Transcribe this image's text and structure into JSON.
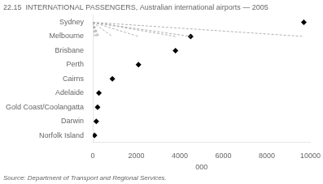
{
  "chart_data": {
    "type": "lollipop",
    "orientation": "horizontal",
    "title": "22.15  INTERNATIONAL PASSENGERS, Australian international airports — 2005",
    "source": "Source: Department of Transport and Regional Services.",
    "xlabel": "000",
    "categories": [
      "Sydney",
      "Melbourne",
      "Brisbane",
      "Perth",
      "Cairns",
      "Adelaide",
      "Gold Coast/Coolangatta",
      "Darwin",
      "Norfolk Island"
    ],
    "values": [
      9700,
      4500,
      3800,
      2100,
      900,
      280,
      220,
      160,
      80
    ],
    "color": "black",
    "marker": "diamond",
    "line_style": "dashed",
    "xlim": [
      0,
      10000
    ],
    "xticks": [
      0,
      2000,
      4000,
      6000,
      8000,
      10000
    ],
    "grid": false
  }
}
